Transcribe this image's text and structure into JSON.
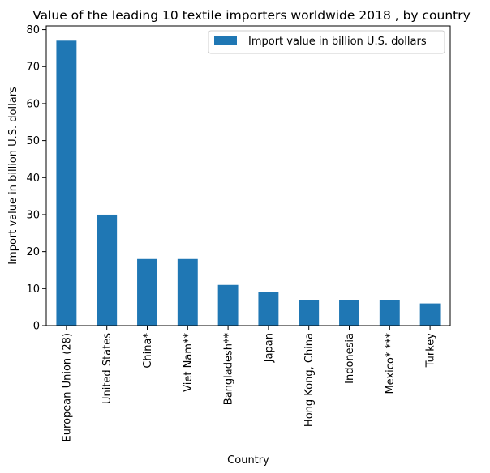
{
  "chart_data": {
    "type": "bar",
    "title": "Value of the leading 10 textile importers worldwide 2018 , by country",
    "xlabel": "Country",
    "ylabel": "Import value in billion U.S. dollars",
    "categories": [
      "European Union (28)",
      "United States",
      "China*",
      "Viet Nam**",
      "Bangladesh**",
      "Japan",
      "Hong Kong, China",
      "Indonesia",
      "Mexico* ***",
      "Turkey"
    ],
    "series": [
      {
        "name": "Import value in billion U.S. dollars",
        "values": [
          77,
          30,
          18,
          18,
          11,
          9,
          7,
          7,
          7,
          6
        ],
        "color": "#1f77b4"
      }
    ],
    "yticks": [
      0,
      10,
      20,
      30,
      40,
      50,
      60,
      70,
      80
    ],
    "ylim": [
      0,
      81
    ],
    "grid": false,
    "legend_position": "top-right"
  }
}
